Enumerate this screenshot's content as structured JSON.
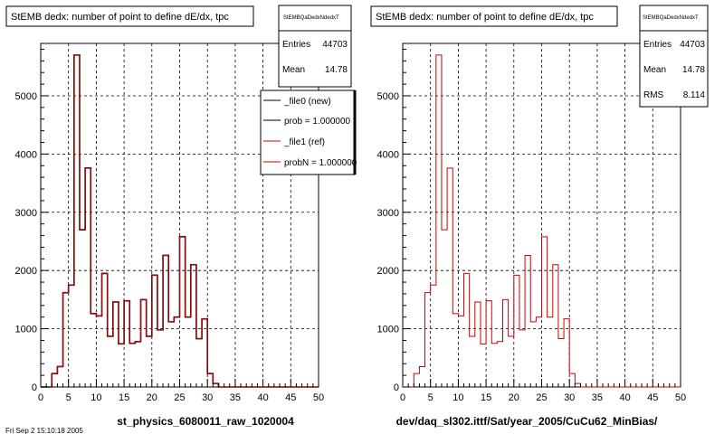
{
  "footer_stamp": "Fri Sep 2 15:10:18 2005",
  "chart_data": [
    {
      "type": "bar",
      "title": "StEMB dedx: number of point to define dE/dx, tpc",
      "xlabel": "st_physics_6080011_raw_1020004",
      "ylabel": "",
      "xlim": [
        0,
        50
      ],
      "ylim": [
        0,
        5900
      ],
      "x_ticks": [
        "0",
        "5",
        "10",
        "15",
        "20",
        "25",
        "30",
        "35",
        "40",
        "45",
        "50"
      ],
      "y_ticks": [
        "0",
        "1000",
        "2000",
        "3000",
        "4000",
        "5000"
      ],
      "y_tick_values": [
        0,
        1000,
        2000,
        3000,
        4000,
        5000
      ],
      "grid": true,
      "bin_width": 1,
      "stats": {
        "name": "StEMBQaDedxNdedxT",
        "rows": [
          {
            "label": "Entries",
            "value": "44703"
          },
          {
            "label": "Mean",
            "value": "14.78"
          }
        ]
      },
      "legend": {
        "placement": "top-right",
        "entries": [
          {
            "label": "_file0 (new)",
            "color": "#000000"
          },
          {
            "label": "prob = 1.000000",
            "color": "#000000"
          },
          {
            "label": "_file1 (ref)",
            "color": "#cc0000"
          },
          {
            "label": "probN = 1.000000",
            "color": "#cc0000"
          }
        ]
      },
      "series": [
        {
          "name": "_file0 (new)",
          "color": "#000000",
          "values": [
            0,
            0,
            230,
            350,
            1620,
            1750,
            5700,
            2700,
            3760,
            1260,
            1220,
            1950,
            870,
            1460,
            740,
            1480,
            750,
            780,
            1500,
            870,
            1920,
            980,
            2260,
            1120,
            1200,
            2580,
            1200,
            2100,
            830,
            1170,
            230,
            60,
            0,
            0,
            0,
            0,
            0,
            0,
            0,
            0,
            0,
            0,
            0,
            0,
            0,
            0,
            0,
            0,
            0,
            0
          ]
        },
        {
          "name": "_file1 (ref)",
          "color": "#cc0000",
          "values": [
            0,
            0,
            230,
            350,
            1620,
            1750,
            5700,
            2700,
            3760,
            1260,
            1220,
            1950,
            870,
            1460,
            740,
            1480,
            750,
            780,
            1500,
            870,
            1920,
            980,
            2260,
            1120,
            1200,
            2580,
            1200,
            2100,
            830,
            1170,
            230,
            60,
            0,
            0,
            0,
            0,
            0,
            0,
            0,
            0,
            0,
            0,
            0,
            0,
            0,
            0,
            0,
            0,
            0,
            0
          ]
        }
      ]
    },
    {
      "type": "bar",
      "title": "StEMB dedx: number of point to define dE/dx, tpc",
      "xlabel": "dev/daq_sl302.ittf/Sat/year_2005/CuCu62_MinBias/",
      "ylabel": "",
      "xlim": [
        0,
        50
      ],
      "ylim": [
        0,
        5900
      ],
      "x_ticks": [
        "0",
        "5",
        "10",
        "15",
        "20",
        "25",
        "30",
        "35",
        "40",
        "45",
        "50"
      ],
      "y_ticks": [
        "0",
        "1000",
        "2000",
        "3000",
        "4000",
        "5000"
      ],
      "y_tick_values": [
        0,
        1000,
        2000,
        3000,
        4000,
        5000
      ],
      "grid": true,
      "bin_width": 1,
      "stats": {
        "name": "StEMBQaDedxNdedxT",
        "rows": [
          {
            "label": "Entries",
            "value": "44703"
          },
          {
            "label": "Mean",
            "value": "14.78"
          },
          {
            "label": "RMS",
            "value": "8.114"
          }
        ]
      },
      "series": [
        {
          "name": "",
          "color": "#cc0000",
          "values": [
            0,
            0,
            230,
            350,
            1620,
            1750,
            5700,
            2700,
            3760,
            1260,
            1220,
            1950,
            870,
            1460,
            740,
            1480,
            750,
            780,
            1500,
            870,
            1920,
            980,
            2260,
            1120,
            1200,
            2580,
            1200,
            2100,
            830,
            1170,
            230,
            60,
            0,
            0,
            0,
            0,
            0,
            0,
            0,
            0,
            0,
            0,
            0,
            0,
            0,
            0,
            0,
            0,
            0,
            0
          ]
        }
      ]
    }
  ]
}
